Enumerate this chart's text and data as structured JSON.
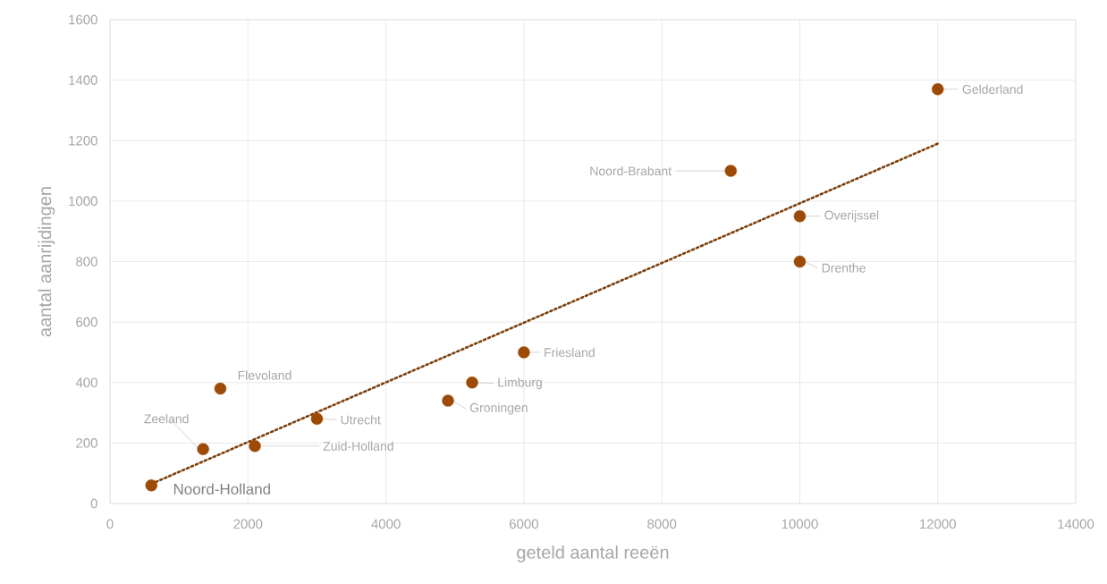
{
  "chart_data": {
    "type": "scatter",
    "xlabel": "geteld aantal reeën",
    "ylabel": "aantal aanrijdingen",
    "xlim": [
      0,
      14000
    ],
    "ylim": [
      0,
      1600
    ],
    "xticks": [
      0,
      2000,
      4000,
      6000,
      8000,
      10000,
      12000,
      14000
    ],
    "yticks": [
      0,
      200,
      400,
      600,
      800,
      1000,
      1200,
      1400,
      1600
    ],
    "grid": true,
    "series": [
      {
        "marker": "circle",
        "color": "#9c4a06",
        "x": [
          600,
          1350,
          2100,
          1600,
          3000,
          4900,
          5250,
          6000,
          9000,
          10000,
          10000,
          12000
        ],
        "values": [
          60,
          180,
          190,
          380,
          280,
          340,
          400,
          500,
          1100,
          800,
          950,
          1370
        ]
      },
      {
        "type": "line",
        "color": "#7b3f0c",
        "line_style": "dotted",
        "marker": "none",
        "x": [
          600,
          12000
        ],
        "values": [
          65,
          1190
        ]
      }
    ],
    "annotations": [
      {
        "text": "Noord-Holland",
        "x": 600,
        "y": 60
      },
      {
        "text": "Zeeland",
        "x": 1350,
        "y": 180
      },
      {
        "text": "Zuid-Holland",
        "x": 2100,
        "y": 190
      },
      {
        "text": "Flevoland",
        "x": 1600,
        "y": 380
      },
      {
        "text": "Utrecht",
        "x": 3000,
        "y": 280
      },
      {
        "text": "Groningen",
        "x": 4900,
        "y": 340
      },
      {
        "text": "Limburg",
        "x": 5250,
        "y": 400
      },
      {
        "text": "Friesland",
        "x": 6000,
        "y": 500
      },
      {
        "text": "Noord-Brabant",
        "x": 9000,
        "y": 1100
      },
      {
        "text": "Drenthe",
        "x": 10000,
        "y": 800
      },
      {
        "text": "Overijssel",
        "x": 10000,
        "y": 950
      },
      {
        "text": "Gelderland",
        "x": 12000,
        "y": 1370
      }
    ]
  }
}
